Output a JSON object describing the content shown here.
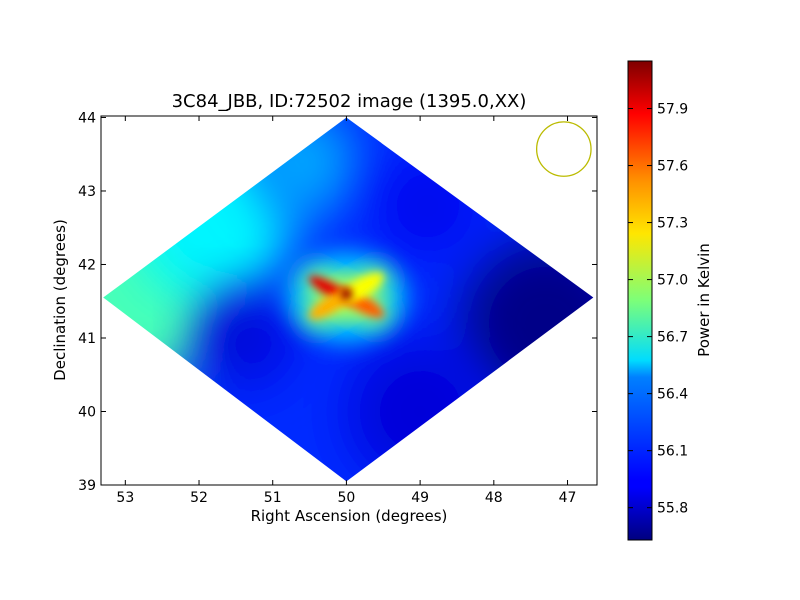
{
  "chart_data": {
    "type": "heatmap",
    "title": "3C84_JBB, ID:72502 image (1395.0,XX)",
    "xlabel": "Right Ascension (degrees)",
    "ylabel": "Declination (degrees)",
    "xlim": [
      53.33,
      46.6
    ],
    "ylim": [
      39.0,
      44.02
    ],
    "x_ticks": [
      {
        "value": 53,
        "label": "53"
      },
      {
        "value": 52,
        "label": "52"
      },
      {
        "value": 51,
        "label": "51"
      },
      {
        "value": 50,
        "label": "50"
      },
      {
        "value": 49,
        "label": "49"
      },
      {
        "value": 48,
        "label": "48"
      },
      {
        "value": 47,
        "label": "47"
      }
    ],
    "y_ticks": [
      {
        "value": 39,
        "label": "39"
      },
      {
        "value": 40,
        "label": "40"
      },
      {
        "value": 41,
        "label": "41"
      },
      {
        "value": 42,
        "label": "42"
      },
      {
        "value": 43,
        "label": "43"
      },
      {
        "value": 44,
        "label": "44"
      }
    ],
    "colorbar": {
      "label": "Power in Kelvin",
      "min": 55.63,
      "max": 58.15,
      "colormap": "jet",
      "ticks": [
        {
          "value": 55.8,
          "label": "55.8"
        },
        {
          "value": 56.1,
          "label": "56.1"
        },
        {
          "value": 56.4,
          "label": "56.4"
        },
        {
          "value": 56.7,
          "label": "56.7"
        },
        {
          "value": 57.0,
          "label": "57.0"
        },
        {
          "value": 57.3,
          "label": "57.3"
        },
        {
          "value": 57.6,
          "label": "57.6"
        },
        {
          "value": 57.9,
          "label": "57.9"
        }
      ]
    },
    "map_region": {
      "center_ra": 50.0,
      "center_dec": 41.55,
      "corners": [
        {
          "ra": 50.0,
          "dec": 44.0
        },
        {
          "ra": 46.65,
          "dec": 41.55
        },
        {
          "ra": 50.0,
          "dec": 39.05
        },
        {
          "ra": 53.3,
          "dec": 41.55
        }
      ]
    },
    "features": [
      {
        "name": "peak-core",
        "ra": 50.0,
        "dec": 41.6,
        "value": 58.1
      },
      {
        "name": "arm-upper-left",
        "ra": 50.4,
        "dec": 41.75,
        "value": 57.9
      },
      {
        "name": "arm-lower-right",
        "ra": 49.6,
        "dec": 41.4,
        "value": 57.6
      },
      {
        "name": "arm-upper-right",
        "ra": 49.6,
        "dec": 41.8,
        "value": 57.2
      },
      {
        "name": "arm-lower-left",
        "ra": 50.45,
        "dec": 41.35,
        "value": 57.4
      },
      {
        "name": "east-edge",
        "ra": 52.8,
        "dec": 41.7,
        "value": 56.75
      },
      {
        "name": "north-east-slope",
        "ra": 51.8,
        "dec": 42.6,
        "value": 56.55
      },
      {
        "name": "west-low",
        "ra": 47.3,
        "dec": 41.2,
        "value": 55.65
      },
      {
        "name": "south-low",
        "ra": 49.0,
        "dec": 40.0,
        "value": 55.85
      }
    ],
    "beam": {
      "ra": 47.05,
      "dec": 43.57,
      "radius_deg": 0.37,
      "color": "#bbbb00"
    }
  }
}
